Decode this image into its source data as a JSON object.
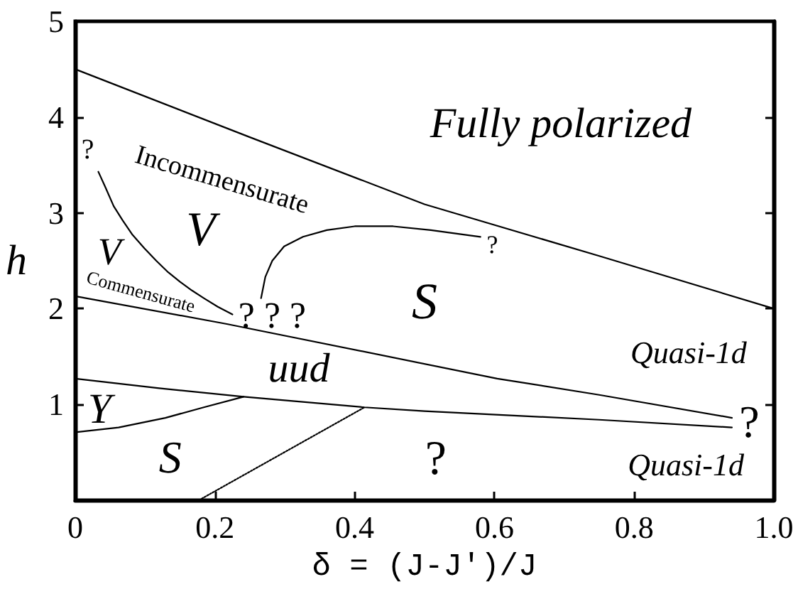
{
  "chart_data": {
    "type": "line",
    "xlabel": "δ = (J-J′)/J",
    "ylabel": "h",
    "xlim": [
      0,
      1
    ],
    "ylim": [
      0,
      5
    ],
    "xticks": [
      0,
      0.2,
      0.4,
      0.6,
      0.8,
      {
        "value": 1,
        "label": "1.0"
      }
    ],
    "yticks": [
      {
        "value": 0,
        "label": null
      },
      1,
      2,
      3,
      4,
      5
    ],
    "marker": "none",
    "series": [
      {
        "color": "#000000",
        "x": [
          0,
          0.25,
          0.5,
          0.75,
          1
        ],
        "values": [
          4.5,
          3.79,
          3.09,
          2.55,
          2.0
        ]
      },
      {
        "color": "#000000",
        "x": [
          0,
          0.217,
          0.604,
          0.75,
          0.94
        ],
        "values": [
          2.13,
          1.84,
          1.27,
          1.1,
          0.86
        ]
      },
      {
        "color": "#000000",
        "x": [
          0,
          0.12,
          0.241,
          0.414,
          0.5,
          0.75,
          0.94
        ],
        "values": [
          1.27,
          1.17,
          1.08,
          0.97,
          0.93,
          0.84,
          0.76
        ]
      },
      {
        "color": "#000000",
        "x": [
          0,
          0.062,
          0.129,
          0.184,
          0.241
        ],
        "values": [
          0.71,
          0.76,
          0.86,
          0.97,
          1.08
        ]
      },
      {
        "color": "#000000",
        "x": [
          0.177,
          0.414
        ],
        "values": [
          0,
          0.97
        ],
        "line_style": "dotted"
      },
      {
        "color": "#000000",
        "x": [
          0.033,
          0.043,
          0.055,
          0.068,
          0.082,
          0.099,
          0.116,
          0.133,
          0.15,
          0.167,
          0.184,
          0.204,
          0.225
        ],
        "values": [
          3.43,
          3.27,
          3.07,
          2.92,
          2.77,
          2.63,
          2.5,
          2.38,
          2.28,
          2.19,
          2.11,
          2.02,
          1.94
        ]
      },
      {
        "color": "#000000",
        "x": [
          0.266,
          0.272,
          0.282,
          0.299,
          0.326,
          0.36,
          0.4,
          0.455,
          0.509,
          0.58
        ],
        "values": [
          2.11,
          2.33,
          2.5,
          2.65,
          2.75,
          2.82,
          2.86,
          2.86,
          2.82,
          2.75
        ]
      }
    ],
    "annotations": [
      "Fully polarized",
      "Incommensurate",
      "?",
      "V",
      "V",
      "Commensurate",
      "? ? ?",
      "?",
      "S",
      "uud",
      "Quasi-1d",
      "?",
      "Y",
      "S",
      "?",
      "Quasi-1d"
    ]
  }
}
